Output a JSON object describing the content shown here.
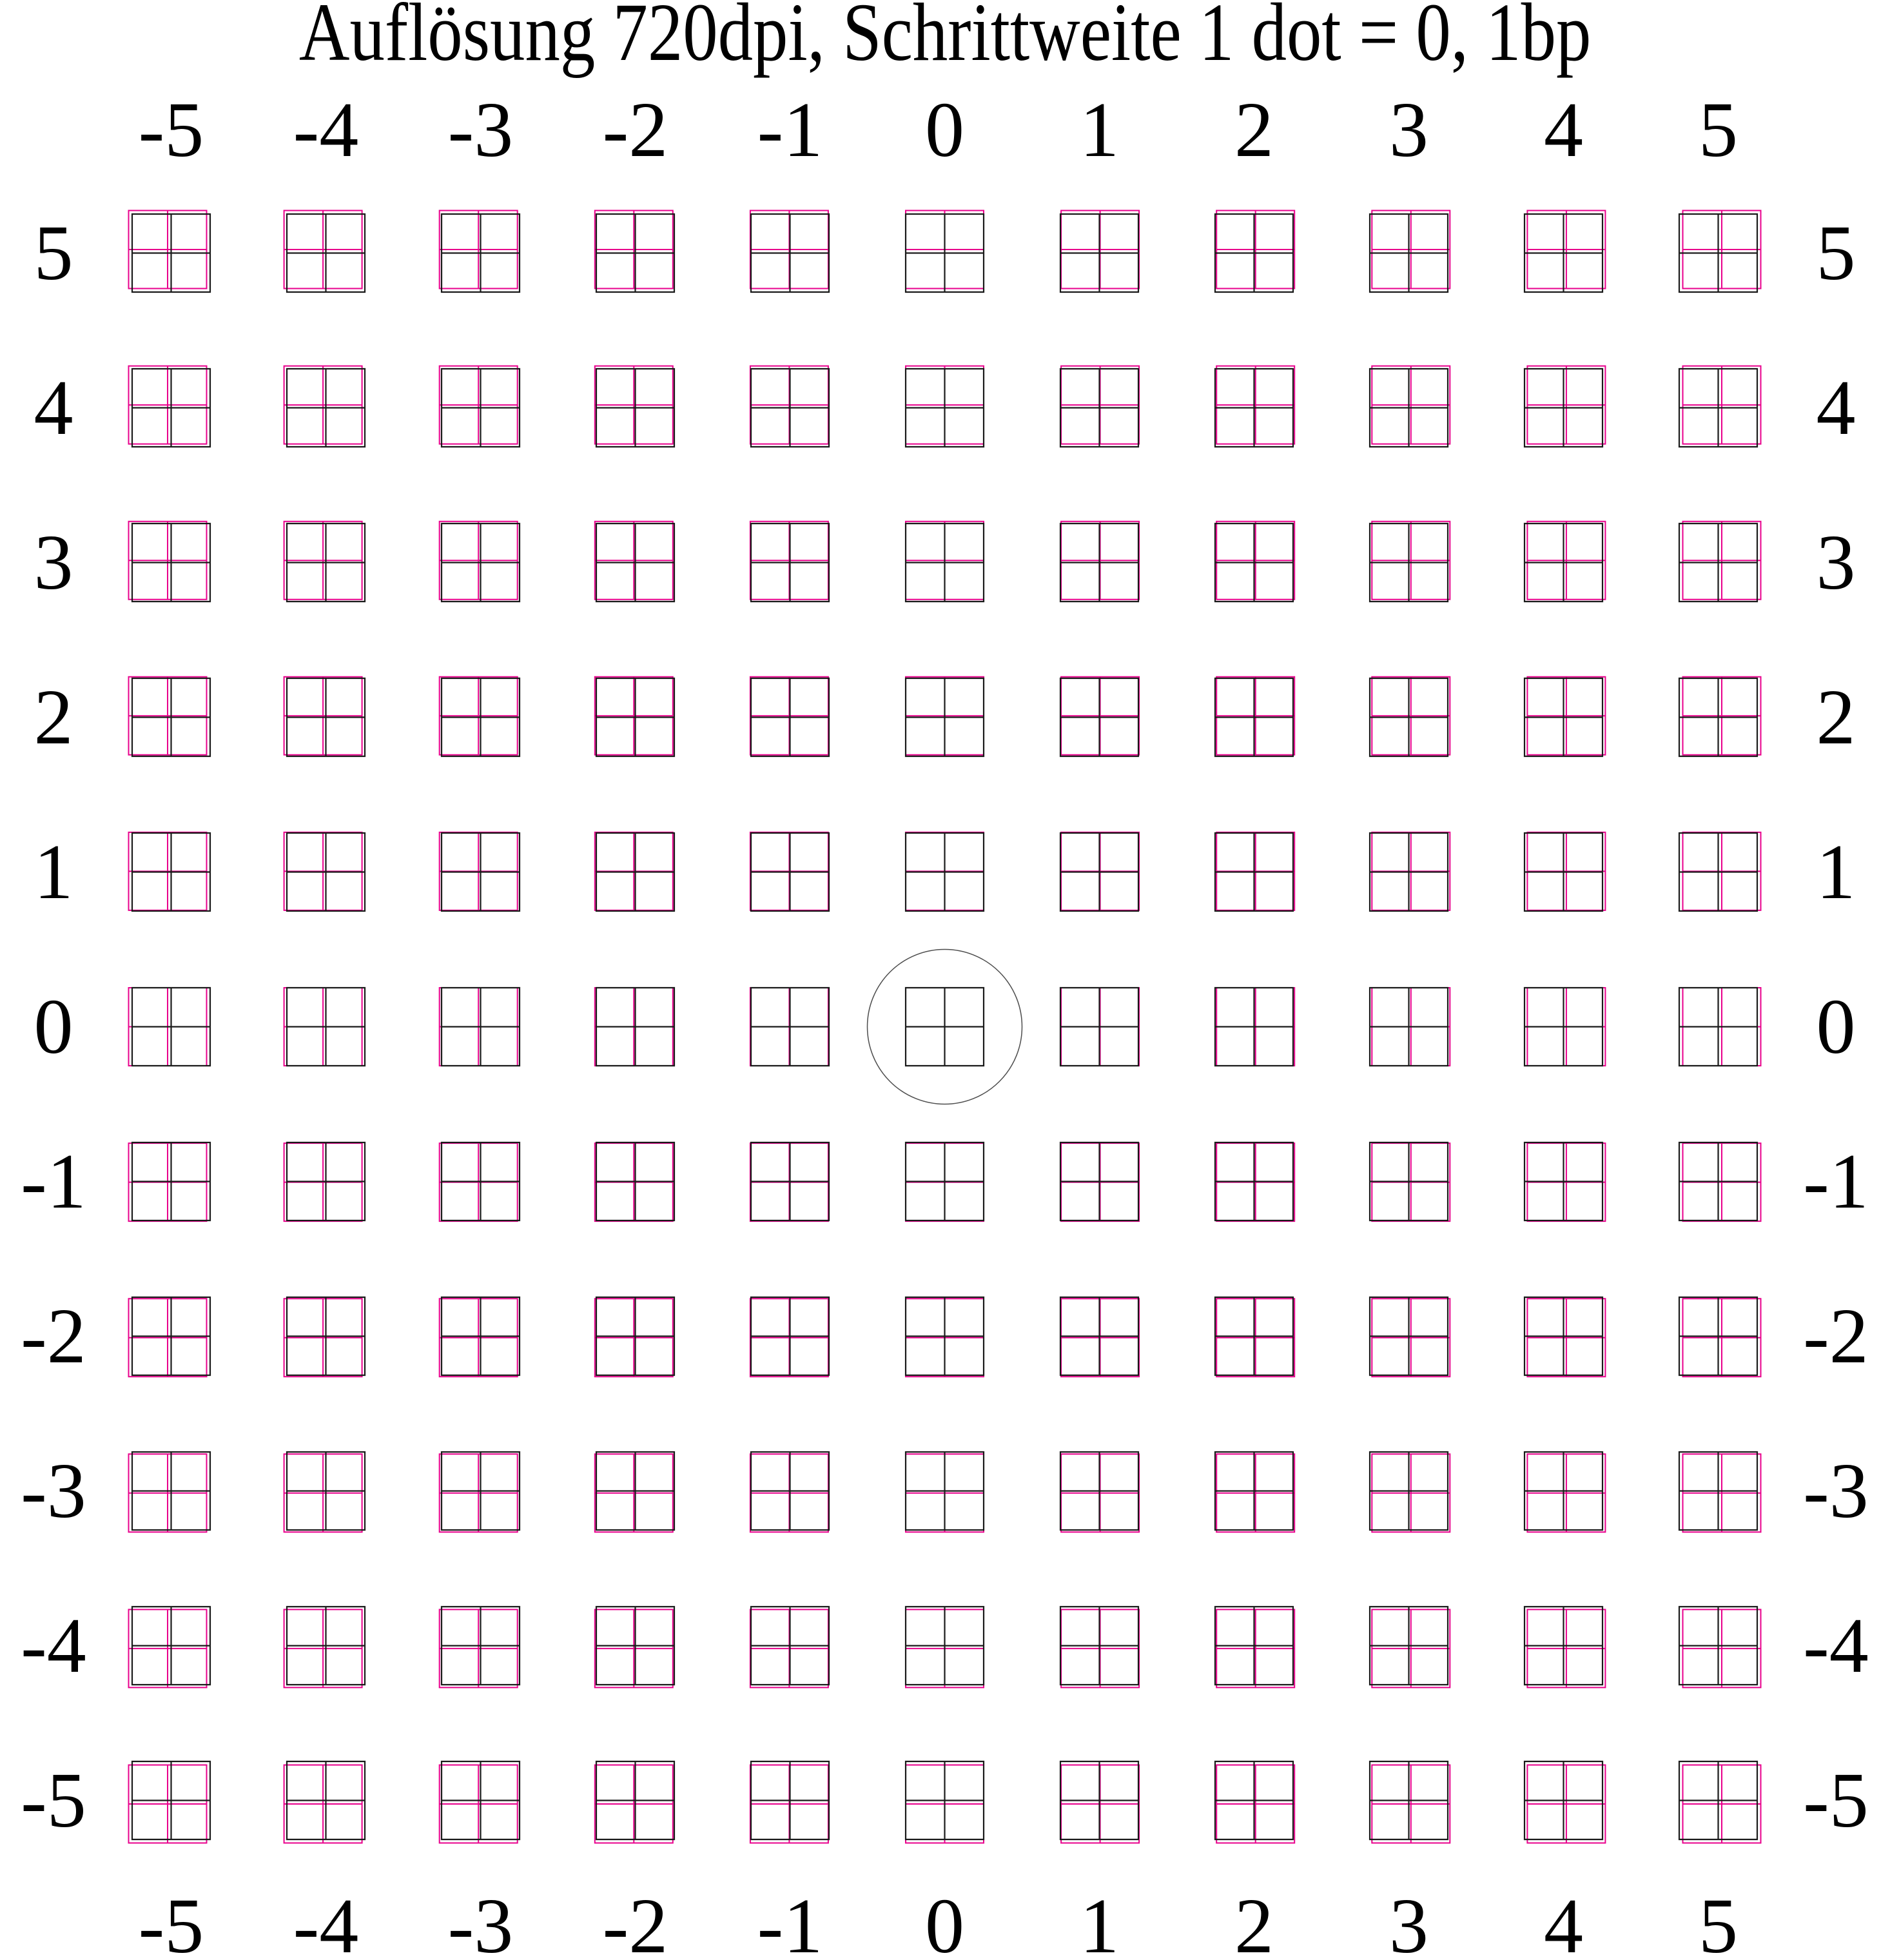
{
  "title": "Auflösung 720dpi, Schrittweite 1 dot = 0, 1bp",
  "axes": {
    "top": [
      "-5",
      "-4",
      "-3",
      "-2",
      "-1",
      "0",
      "1",
      "2",
      "3",
      "4",
      "5"
    ],
    "bottom": [
      "-5",
      "-4",
      "-3",
      "-2",
      "-1",
      "0",
      "1",
      "2",
      "3",
      "4",
      "5"
    ],
    "left": [
      "5",
      "4",
      "3",
      "2",
      "1",
      "0",
      "-1",
      "-2",
      "-3",
      "-4",
      "-5"
    ],
    "right": [
      "5",
      "4",
      "3",
      "2",
      "1",
      "0",
      "-1",
      "-2",
      "-3",
      "-4",
      "-5"
    ]
  },
  "chart_data": {
    "type": "printer-alignment-grid",
    "title": "Auflösung 720dpi, Schrittweite 1 dot = 0, 1bp",
    "x_offsets_dots": [
      -5,
      -4,
      -3,
      -2,
      -1,
      0,
      1,
      2,
      3,
      4,
      5
    ],
    "y_offsets_dots": [
      5,
      4,
      3,
      2,
      1,
      0,
      -1,
      -2,
      -3,
      -4,
      -5
    ],
    "cell_glyph": "square window pane divided into 2x2 quadrants",
    "layers": [
      {
        "name": "reference-window",
        "color": "#1a1a1a"
      },
      {
        "name": "offset-window",
        "color": "#e8008c",
        "rule": "shifted by (column dots right, row dots up) relative to reference"
      }
    ],
    "zero_marker": {
      "x": 0,
      "y": 0,
      "shape": "circle"
    }
  },
  "colors": {
    "background": "#ffffff",
    "black_ink": "#1a1a1a",
    "magenta_ink": "#e8008c",
    "circle_marker": "#4d4d4d"
  }
}
